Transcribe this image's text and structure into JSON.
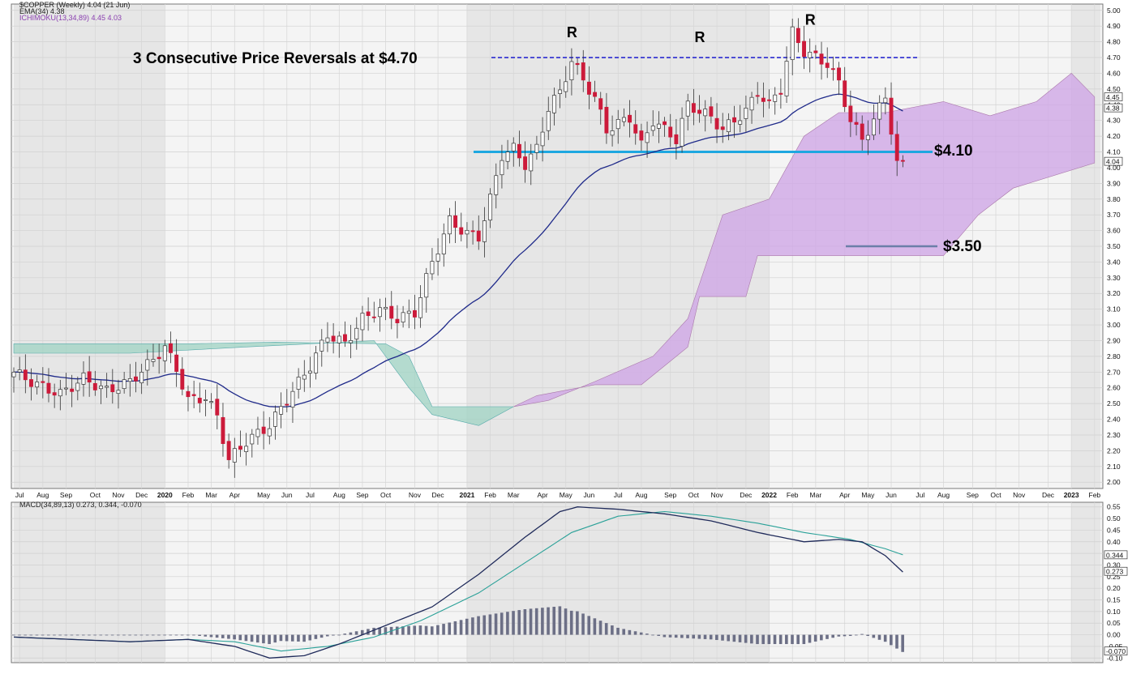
{
  "legend": {
    "line1": "$COPPER (Weekly) 4.04 (21 Jun)",
    "line2": "EMA(34) 4.38",
    "line3": "ICHIMOKU(13,34,89) 4.45 4.03",
    "macd": "MACD(34,89,13) 0.273, 0.344, -0.070"
  },
  "annotations": {
    "title": "3 Consecutive Price Reversals at $4.70",
    "r_label": "R",
    "resistance_label": "$4.10",
    "target_label": "$3.50"
  },
  "price_badges": [
    "4.45",
    "4.38",
    "4.04"
  ],
  "macd_badges": [
    "0.344",
    "0.273",
    "-0.070"
  ],
  "colors": {
    "up": "#ffffff",
    "down": "#cc1a3a",
    "ema": "#1f2a8a",
    "cloud_green": "#9fd3c3",
    "cloud_purple": "#cfa7e6",
    "line_4_10": "#1ea7e0",
    "line_4_70": "#2a2ad0",
    "macd_line": "#1f2a5a",
    "signal_line": "#2aa198",
    "histogram": "#6c6f86"
  },
  "chart_data": {
    "type": "candlestick",
    "price_axis": [
      "5.00",
      "4.90",
      "4.80",
      "4.70",
      "4.60",
      "4.50",
      "4.40",
      "4.30",
      "4.20",
      "4.10",
      "4.00",
      "3.90",
      "3.80",
      "3.70",
      "3.60",
      "3.50",
      "3.40",
      "3.30",
      "3.20",
      "3.10",
      "3.00",
      "2.90",
      "2.80",
      "2.70",
      "2.60",
      "2.50",
      "2.40",
      "2.30",
      "2.20",
      "2.10",
      "2.00"
    ],
    "ylim": [
      1.96,
      5.04
    ],
    "x_labels": [
      {
        "week": 1,
        "text": "Jul"
      },
      {
        "week": 5,
        "text": "Aug"
      },
      {
        "week": 9,
        "text": "Sep"
      },
      {
        "week": 14,
        "text": "Oct"
      },
      {
        "week": 18,
        "text": "Nov"
      },
      {
        "week": 22,
        "text": "Dec"
      },
      {
        "week": 26,
        "text": "2020",
        "bold": true
      },
      {
        "week": 30,
        "text": "Feb"
      },
      {
        "week": 34,
        "text": "Mar"
      },
      {
        "week": 38,
        "text": "Apr"
      },
      {
        "week": 43,
        "text": "May"
      },
      {
        "week": 47,
        "text": "Jun"
      },
      {
        "week": 51,
        "text": "Jul"
      },
      {
        "week": 56,
        "text": "Aug"
      },
      {
        "week": 60,
        "text": "Sep"
      },
      {
        "week": 64,
        "text": "Oct"
      },
      {
        "week": 69,
        "text": "Nov"
      },
      {
        "week": 73,
        "text": "Dec"
      },
      {
        "week": 78,
        "text": "2021",
        "bold": true
      },
      {
        "week": 82,
        "text": "Feb"
      },
      {
        "week": 86,
        "text": "Mar"
      },
      {
        "week": 91,
        "text": "Apr"
      },
      {
        "week": 95,
        "text": "May"
      },
      {
        "week": 99,
        "text": "Jun"
      },
      {
        "week": 104,
        "text": "Jul"
      },
      {
        "week": 108,
        "text": "Aug"
      },
      {
        "week": 113,
        "text": "Sep"
      },
      {
        "week": 117,
        "text": "Oct"
      },
      {
        "week": 121,
        "text": "Nov"
      },
      {
        "week": 126,
        "text": "Dec"
      },
      {
        "week": 130,
        "text": "2022",
        "bold": true
      },
      {
        "week": 134,
        "text": "Feb"
      },
      {
        "week": 138,
        "text": "Mar"
      },
      {
        "week": 143,
        "text": "Apr"
      },
      {
        "week": 147,
        "text": "May"
      },
      {
        "week": 151,
        "text": "Jun"
      },
      {
        "week": 156,
        "text": "Jul"
      },
      {
        "week": 160,
        "text": "Aug"
      },
      {
        "week": 165,
        "text": "Sep"
      },
      {
        "week": 169,
        "text": "Oct"
      },
      {
        "week": 173,
        "text": "Nov"
      },
      {
        "week": 178,
        "text": "Dec"
      },
      {
        "week": 182,
        "text": "2023",
        "bold": true
      },
      {
        "week": 186,
        "text": "Feb"
      }
    ],
    "close_anchors": [
      [
        0,
        2.7
      ],
      [
        4,
        2.62
      ],
      [
        8,
        2.56
      ],
      [
        12,
        2.66
      ],
      [
        16,
        2.58
      ],
      [
        20,
        2.64
      ],
      [
        24,
        2.78
      ],
      [
        26,
        2.86
      ],
      [
        28,
        2.72
      ],
      [
        30,
        2.52
      ],
      [
        33,
        2.54
      ],
      [
        35,
        2.42
      ],
      [
        37,
        2.14
      ],
      [
        40,
        2.26
      ],
      [
        44,
        2.36
      ],
      [
        48,
        2.58
      ],
      [
        51,
        2.74
      ],
      [
        54,
        2.94
      ],
      [
        57,
        2.88
      ],
      [
        60,
        3.04
      ],
      [
        63,
        3.1
      ],
      [
        66,
        3.04
      ],
      [
        69,
        3.08
      ],
      [
        72,
        3.4
      ],
      [
        75,
        3.66
      ],
      [
        78,
        3.58
      ],
      [
        80,
        3.56
      ],
      [
        82,
        3.8
      ],
      [
        84,
        4.08
      ],
      [
        86,
        4.12
      ],
      [
        88,
        4.02
      ],
      [
        90,
        4.12
      ],
      [
        92,
        4.38
      ],
      [
        94,
        4.48
      ],
      [
        96,
        4.68
      ],
      [
        98,
        4.56
      ],
      [
        100,
        4.44
      ],
      [
        102,
        4.24
      ],
      [
        104,
        4.28
      ],
      [
        106,
        4.32
      ],
      [
        108,
        4.14
      ],
      [
        110,
        4.3
      ],
      [
        112,
        4.24
      ],
      [
        114,
        4.18
      ],
      [
        116,
        4.4
      ],
      [
        118,
        4.36
      ],
      [
        120,
        4.32
      ],
      [
        122,
        4.24
      ],
      [
        124,
        4.3
      ],
      [
        126,
        4.36
      ],
      [
        128,
        4.48
      ],
      [
        130,
        4.4
      ],
      [
        132,
        4.5
      ],
      [
        134,
        4.86
      ],
      [
        136,
        4.74
      ],
      [
        138,
        4.7
      ],
      [
        140,
        4.66
      ],
      [
        142,
        4.54
      ],
      [
        144,
        4.3
      ],
      [
        146,
        4.18
      ],
      [
        148,
        4.3
      ],
      [
        150,
        4.46
      ],
      [
        152,
        4.02
      ],
      [
        153,
        4.04
      ]
    ],
    "ema": {
      "name": "EMA(34)",
      "last": 4.38
    },
    "ichimoku": {
      "name": "ICHIMOKU(13,34,89)",
      "span_a": 4.45,
      "span_b": 4.03
    },
    "horizontal_levels": [
      {
        "label": "$4.70",
        "value": 4.7,
        "style": "dashed"
      },
      {
        "label": "$4.10",
        "value": 4.1,
        "style": "solid"
      },
      {
        "label": "$3.50",
        "value": 3.5,
        "style": "solid"
      }
    ],
    "reversal_markers": [
      {
        "week": 96,
        "price": 4.86
      },
      {
        "week": 118,
        "price": 4.83
      },
      {
        "week": 137,
        "price": 4.94
      }
    ],
    "macd": {
      "name": "MACD(34,89,13)",
      "axis": [
        "0.55",
        "0.50",
        "0.45",
        "0.40",
        "0.35",
        "0.30",
        "0.25",
        "0.20",
        "0.15",
        "0.10",
        "0.05",
        "0.00",
        "-0.05",
        "-0.10"
      ],
      "ylim": [
        -0.12,
        0.57
      ],
      "macd_last": 0.273,
      "signal_last": 0.344,
      "histogram_last": -0.07,
      "macd_anchors": [
        [
          0,
          -0.01
        ],
        [
          10,
          -0.02
        ],
        [
          20,
          -0.03
        ],
        [
          30,
          -0.02
        ],
        [
          38,
          -0.05
        ],
        [
          44,
          -0.1
        ],
        [
          50,
          -0.09
        ],
        [
          56,
          -0.04
        ],
        [
          64,
          0.04
        ],
        [
          72,
          0.12
        ],
        [
          80,
          0.26
        ],
        [
          88,
          0.42
        ],
        [
          94,
          0.53
        ],
        [
          97,
          0.55
        ],
        [
          104,
          0.54
        ],
        [
          112,
          0.52
        ],
        [
          120,
          0.49
        ],
        [
          128,
          0.44
        ],
        [
          136,
          0.4
        ],
        [
          142,
          0.41
        ],
        [
          146,
          0.4
        ],
        [
          150,
          0.34
        ],
        [
          153,
          0.27
        ]
      ],
      "signal_anchors": [
        [
          0,
          -0.01
        ],
        [
          10,
          -0.02
        ],
        [
          20,
          -0.03
        ],
        [
          30,
          -0.02
        ],
        [
          38,
          -0.03
        ],
        [
          46,
          -0.07
        ],
        [
          54,
          -0.05
        ],
        [
          62,
          -0.01
        ],
        [
          70,
          0.06
        ],
        [
          80,
          0.18
        ],
        [
          88,
          0.31
        ],
        [
          96,
          0.44
        ],
        [
          104,
          0.51
        ],
        [
          112,
          0.53
        ],
        [
          120,
          0.51
        ],
        [
          128,
          0.48
        ],
        [
          136,
          0.44
        ],
        [
          144,
          0.41
        ],
        [
          150,
          0.37
        ],
        [
          153,
          0.344
        ]
      ]
    }
  }
}
